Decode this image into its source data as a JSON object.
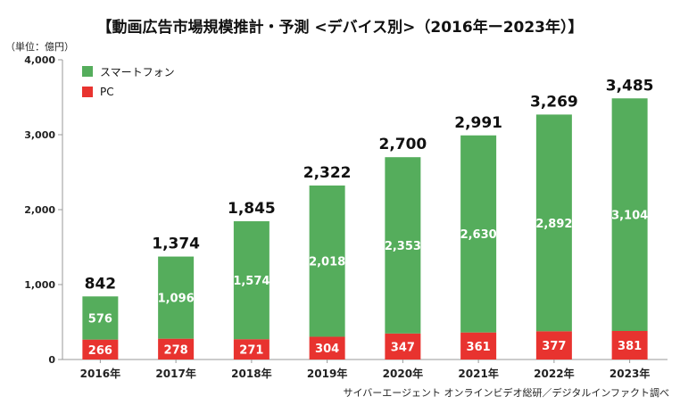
{
  "title": "【動画広告市場規模推計・予測 <デバイス別>（2016年ー2023年）】",
  "unit_label": "（単位：億円）",
  "source": "サイバーエージェント オンラインビデオ総研／デジタルインファクト調べ",
  "colors": {
    "smartphone": "#55ad5c",
    "pc": "#e8332f",
    "axis": "#999999"
  },
  "chart_data": {
    "type": "bar",
    "stacked": true,
    "categories": [
      "2016年",
      "2017年",
      "2018年",
      "2019年",
      "2020年",
      "2021年",
      "2022年",
      "2023年"
    ],
    "series": [
      {
        "name": "PC",
        "values": [
          266,
          278,
          271,
          304,
          347,
          361,
          377,
          381
        ]
      },
      {
        "name": "スマートフォン",
        "values": [
          576,
          1096,
          1574,
          2018,
          2353,
          2630,
          2892,
          3104
        ]
      }
    ],
    "totals": [
      842,
      1374,
      1845,
      2322,
      2700,
      2991,
      3269,
      3485
    ],
    "ylim": [
      0,
      4000
    ],
    "yticks": [
      0,
      1000,
      2000,
      3000,
      4000
    ],
    "ytick_labels": [
      "0",
      "1,000",
      "2,000",
      "3,000",
      "4,000"
    ],
    "legend_position": "top-left",
    "grid": false
  }
}
